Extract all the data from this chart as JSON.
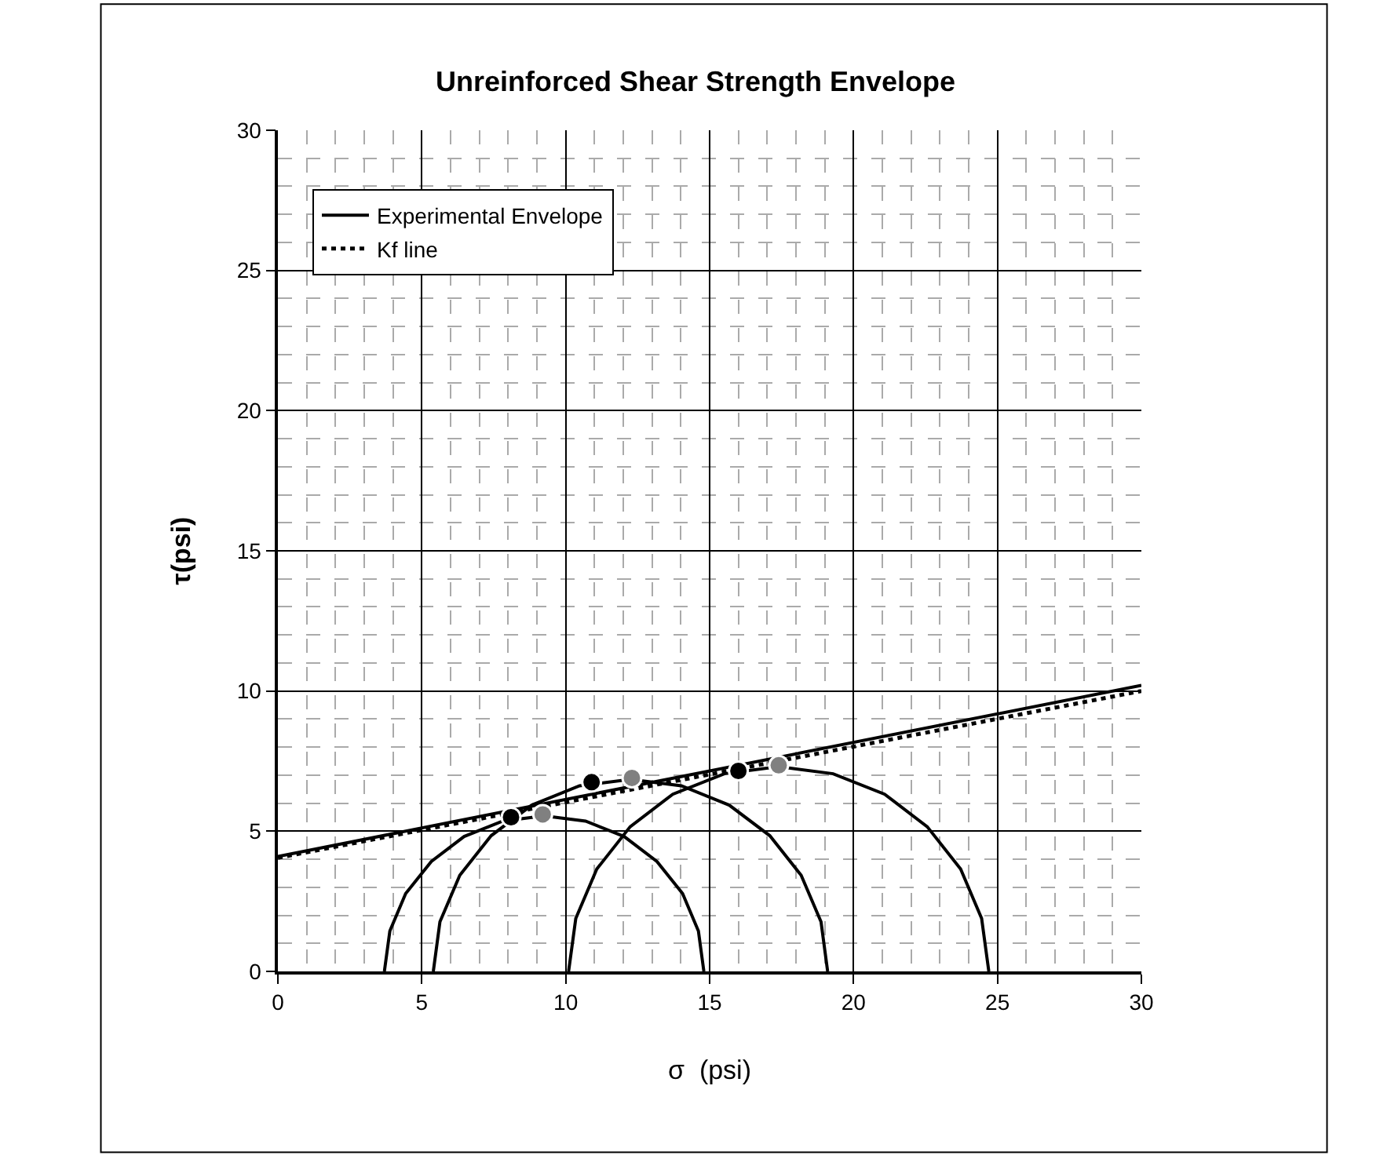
{
  "chart_data": {
    "type": "line",
    "title": "Unreinforced Shear Strength Envelope",
    "xlabel": "σ  (psi)",
    "ylabel": "τ(psi)",
    "xlim": [
      0,
      30
    ],
    "ylim": [
      0,
      30
    ],
    "xticks": [
      0,
      5,
      10,
      15,
      20,
      25,
      30
    ],
    "yticks": [
      0,
      5,
      10,
      15,
      20,
      25,
      30
    ],
    "grid": true,
    "legend": "top left",
    "marker": "none",
    "line_style": "solid",
    "series": [
      {
        "name": "Experimental Envelope",
        "color": "#000000",
        "x": [
          0,
          30
        ],
        "values": [
          4.1,
          10.2
        ]
      },
      {
        "name": "Kf line",
        "color": "#000000",
        "line_style": "dotted",
        "x": [
          0,
          30
        ],
        "values": [
          4.05,
          10.0
        ]
      },
      {
        "color": "#000000",
        "x": [
          3.7,
          3.89,
          4.44,
          5.33,
          6.47,
          7.81,
          9.25,
          10.69,
          12.03,
          13.17,
          14.06,
          14.61,
          14.8
        ],
        "values": [
          0,
          1.44,
          2.78,
          3.92,
          4.81,
          5.36,
          5.55,
          5.36,
          4.81,
          3.92,
          2.78,
          1.44,
          0
        ]
      },
      {
        "color": "#000000",
        "x": [
          5.4,
          5.63,
          6.32,
          7.41,
          8.82,
          10.48,
          12.25,
          14.02,
          15.68,
          17.09,
          18.18,
          18.87,
          19.1
        ],
        "values": [
          0,
          1.77,
          3.43,
          4.84,
          5.93,
          6.62,
          6.85,
          6.62,
          5.93,
          4.84,
          3.43,
          1.77,
          0
        ]
      },
      {
        "color": "#000000",
        "x": [
          10.1,
          10.35,
          11.08,
          12.24,
          13.72,
          15.51,
          17.4,
          19.29,
          21.08,
          22.56,
          23.72,
          24.45,
          24.7
        ],
        "values": [
          0,
          1.89,
          3.65,
          5.16,
          6.32,
          7.05,
          7.3,
          7.05,
          6.32,
          5.16,
          3.65,
          1.89,
          0
        ]
      },
      {
        "type": "scatter",
        "marker": "circle",
        "color": "#000000",
        "x": [
          8.1,
          10.9,
          16.0
        ],
        "values": [
          5.5,
          6.75,
          7.15
        ]
      },
      {
        "type": "scatter",
        "marker": "circle",
        "color": "#808080",
        "x": [
          9.2,
          12.3,
          17.4
        ],
        "values": [
          5.6,
          6.9,
          7.35
        ]
      }
    ]
  }
}
